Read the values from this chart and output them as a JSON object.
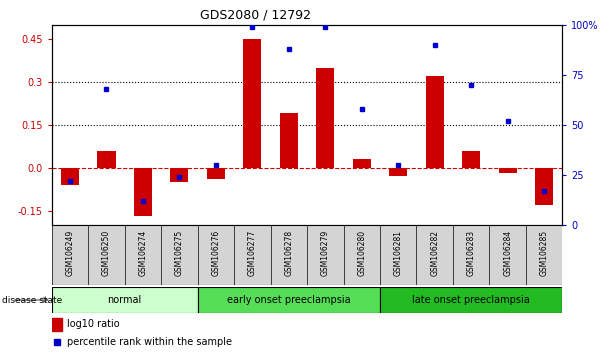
{
  "title": "GDS2080 / 12792",
  "samples": [
    "GSM106249",
    "GSM106250",
    "GSM106274",
    "GSM106275",
    "GSM106276",
    "GSM106277",
    "GSM106278",
    "GSM106279",
    "GSM106280",
    "GSM106281",
    "GSM106282",
    "GSM106283",
    "GSM106284",
    "GSM106285"
  ],
  "log10_ratio": [
    -0.06,
    0.06,
    -0.17,
    -0.05,
    -0.04,
    0.45,
    0.19,
    0.35,
    0.03,
    -0.03,
    0.32,
    0.06,
    -0.02,
    -0.13
  ],
  "percentile_rank": [
    22,
    68,
    12,
    24,
    30,
    99,
    88,
    99,
    58,
    30,
    90,
    70,
    52,
    17
  ],
  "bar_color": "#cc0000",
  "dot_color": "#0000cc",
  "groups": [
    {
      "label": "normal",
      "start": 0,
      "end": 4,
      "color": "#ccffcc"
    },
    {
      "label": "early onset preeclampsia",
      "start": 4,
      "end": 9,
      "color": "#55dd55"
    },
    {
      "label": "late onset preeclampsia",
      "start": 9,
      "end": 14,
      "color": "#22bb22"
    }
  ],
  "ylim_left": [
    -0.2,
    0.5
  ],
  "ylim_right": [
    0,
    100
  ],
  "yticks_left": [
    -0.15,
    0.0,
    0.15,
    0.3,
    0.45
  ],
  "yticks_right": [
    0,
    25,
    50,
    75,
    100
  ],
  "hlines": [
    0.15,
    0.3
  ],
  "zero_line_color": "#cc0000",
  "grid_color": "#000000",
  "background_color": "#ffffff",
  "legend_items": [
    "log10 ratio",
    "percentile rank within the sample"
  ]
}
